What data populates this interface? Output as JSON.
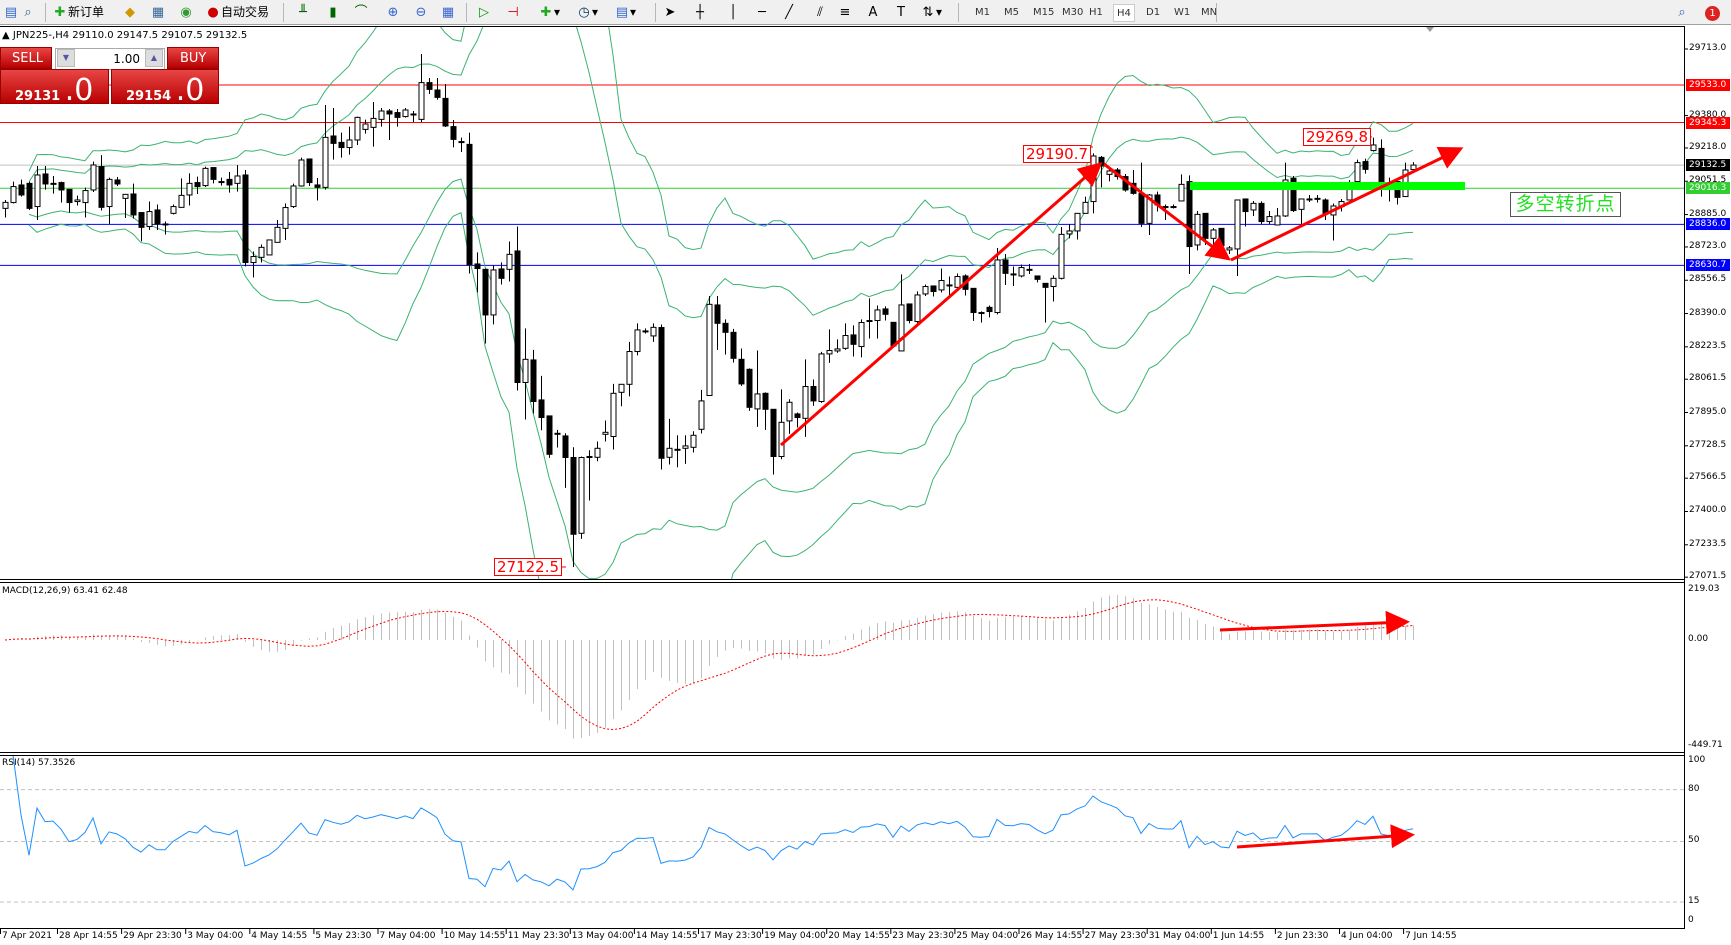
{
  "toolbar": {
    "new_order": "新订单",
    "auto_trading": "自动交易",
    "timeframes": [
      "M1",
      "M5",
      "M15",
      "M30",
      "H1",
      "H4",
      "D1",
      "W1",
      "MN"
    ],
    "active_timeframe": "H4",
    "notification_count": "1",
    "icons": [
      "profiles-icon",
      "market-watch-icon",
      "new-order-icon",
      "expert-icon",
      "data-window-icon",
      "signals-icon",
      "auto-trading-icon",
      "bar-chart-icon",
      "candlestick-icon",
      "line-chart-icon",
      "zoom-in-icon",
      "zoom-out-icon",
      "tile-windows-icon",
      "chart-shift-icon",
      "auto-scroll-icon",
      "indicators-icon",
      "periods-icon",
      "templates-icon",
      "cursor-icon",
      "crosshair-icon",
      "vertical-line-icon",
      "horizontal-line-icon",
      "trendline-icon",
      "channel-icon",
      "fibonacci-icon",
      "text-icon",
      "text-label-icon",
      "arrows-icon",
      "search-icon",
      "notification-icon"
    ]
  },
  "header": {
    "symbol_info": "▲ JPN225-,H4  29110.0 29147.5 29107.5 29132.5"
  },
  "one_click": {
    "sell_label": "SELL",
    "buy_label": "BUY",
    "lots": "1.00",
    "sell_price_main": "29131",
    "sell_price_big": ".0",
    "buy_price_main": "29154",
    "buy_price_big": ".0",
    "colors": {
      "panel": "#c80000"
    }
  },
  "annotations": {
    "high1": "29190.7",
    "high2": "29269.8",
    "low1": "27122.5",
    "pivot_text": "多空转折点"
  },
  "macd": {
    "label": "MACD(12,26,9) 63.41 62.48",
    "axis": [
      "219.03",
      "0.00",
      "-449.71"
    ]
  },
  "rsi": {
    "label": "RSI(14) 57.3526",
    "axis": [
      "100",
      "80",
      "50",
      "15",
      "0"
    ]
  },
  "chart_data": {
    "type": "candlestick",
    "symbol": "JPN225-",
    "timeframe": "H4",
    "ylim": [
      27071.5,
      29713.0
    ],
    "price_ticks": [
      "29713.0",
      "29380.0",
      "29218.0",
      "29051.5",
      "28885.0",
      "28723.0",
      "28556.5",
      "28390.0",
      "28223.5",
      "28061.5",
      "27895.0",
      "27728.5",
      "27566.5",
      "27400.0",
      "27233.5",
      "27071.5"
    ],
    "levels": [
      {
        "price": 29533.0,
        "label": "29533.0",
        "color": "#ff0000"
      },
      {
        "price": 29345.3,
        "label": "29345.3",
        "color": "#ff0000"
      },
      {
        "price": 29132.5,
        "label": "29132.5",
        "color": "#000000",
        "line": "#c0c0c0"
      },
      {
        "price": 29016.3,
        "label": "29016.3",
        "color": "#32cd32"
      },
      {
        "price": 28836.0,
        "label": "28836.0",
        "color": "#0000ff"
      },
      {
        "price": 28630.7,
        "label": "28630.7",
        "color": "#0000ff"
      }
    ],
    "time_labels": [
      "7 Apr 2021",
      "28 Apr 14:55",
      "29 Apr 23:30",
      "3 May 04:00",
      "4 May 14:55",
      "5 May 23:30",
      "7 May 04:00",
      "10 May 14:55",
      "11 May 23:30",
      "13 May 04:00",
      "14 May 14:55",
      "17 May 23:30",
      "19 May 04:00",
      "20 May 14:55",
      "23 May 23:30",
      "25 May 04:00",
      "26 May 14:55",
      "27 May 23:30",
      "31 May 04:00",
      "1 Jun 14:55",
      "2 Jun 23:30",
      "4 Jun 04:00",
      "7 Jun 14:55"
    ],
    "ohlc": [
      [
        28916,
        28958,
        28870,
        28946
      ],
      [
        28945,
        29050,
        28940,
        29025
      ],
      [
        29033,
        29060,
        28975,
        28983
      ],
      [
        29041,
        29050,
        28908,
        28916
      ],
      [
        28925,
        29128,
        28858,
        29083
      ],
      [
        29088,
        29128,
        29010,
        29038
      ],
      [
        29040,
        29078,
        28990,
        29041
      ],
      [
        29045,
        29050,
        28945,
        29008
      ],
      [
        29011,
        29011,
        28895,
        28945
      ],
      [
        28950,
        28980,
        28930,
        28958
      ],
      [
        28945,
        29020,
        28870,
        29005
      ],
      [
        29008,
        29150,
        28998,
        29133
      ],
      [
        29125,
        29182,
        28905,
        28921
      ],
      [
        28925,
        29070,
        28838,
        29061
      ],
      [
        29058,
        29073,
        29028,
        29038
      ],
      [
        28966,
        28986,
        28868,
        28986
      ],
      [
        28988,
        29040,
        28865,
        28883
      ],
      [
        28895,
        28895,
        28751,
        28821
      ],
      [
        28825,
        28950,
        28808,
        28900
      ],
      [
        28908,
        28935,
        28808,
        28838
      ],
      [
        28838,
        28850,
        28785,
        28838
      ],
      [
        28891,
        28935,
        28885,
        28925
      ],
      [
        28921,
        29066,
        28920,
        28981
      ],
      [
        28983,
        29091,
        28930,
        29041
      ],
      [
        29045,
        29075,
        28988,
        29025
      ],
      [
        29030,
        29125,
        29023,
        29116
      ],
      [
        29120,
        29120,
        29041,
        29061
      ],
      [
        29050,
        29070,
        29030,
        29050
      ],
      [
        29061,
        29098,
        28995,
        29033
      ],
      [
        29041,
        29133,
        29000,
        29078
      ],
      [
        29083,
        29108,
        28626,
        28645
      ],
      [
        28645,
        28700,
        28570,
        28675
      ],
      [
        28671,
        28735,
        28645,
        28721
      ],
      [
        28683,
        28758,
        28683,
        28758
      ],
      [
        28746,
        28858,
        28746,
        28821
      ],
      [
        28816,
        28940,
        28758,
        28920
      ],
      [
        28925,
        29040,
        28918,
        29028
      ],
      [
        29028,
        29170,
        29025,
        29158
      ],
      [
        29163,
        29163,
        29028,
        29045
      ],
      [
        29033,
        29068,
        28955,
        29021
      ],
      [
        29021,
        29433,
        29010,
        29271
      ],
      [
        29278,
        29418,
        29160,
        29241
      ],
      [
        29246,
        29295,
        29170,
        29220
      ],
      [
        29220,
        29325,
        29185,
        29258
      ],
      [
        29258,
        29375,
        29233,
        29371
      ],
      [
        29311,
        29360,
        29290,
        29338
      ],
      [
        29321,
        29448,
        29225,
        29366
      ],
      [
        29361,
        29418,
        29325,
        29403
      ],
      [
        29403,
        29413,
        29258,
        29388
      ],
      [
        29395,
        29413,
        29325,
        29371
      ],
      [
        29375,
        29418,
        29370,
        29408
      ],
      [
        29388,
        29403,
        29348,
        29388
      ],
      [
        29361,
        29688,
        29348,
        29545
      ],
      [
        29545,
        29568,
        29488,
        29511
      ],
      [
        29508,
        29568,
        29460,
        29471
      ],
      [
        29466,
        29538,
        29323,
        29328
      ],
      [
        29325,
        29358,
        29221,
        29261
      ],
      [
        29250,
        29270,
        29198,
        29250
      ],
      [
        29236,
        29295,
        28590,
        28633
      ],
      [
        28638,
        28696,
        28496,
        28615
      ],
      [
        28611,
        28615,
        28240,
        28383
      ],
      [
        28383,
        28630,
        28336,
        28608
      ],
      [
        28613,
        28646,
        28535,
        28566
      ],
      [
        28611,
        28750,
        28550,
        28686
      ],
      [
        28703,
        28825,
        28005,
        28045
      ],
      [
        28045,
        28316,
        27860,
        28161
      ],
      [
        28158,
        28208,
        27890,
        27950
      ],
      [
        27958,
        28078,
        27806,
        27870
      ],
      [
        27878,
        27878,
        27668,
        27686
      ],
      [
        27791,
        27808,
        27720,
        27791
      ],
      [
        27778,
        27791,
        27518,
        27670
      ],
      [
        27670,
        27721,
        27122.5,
        27286
      ],
      [
        27291,
        27675,
        27263,
        27670
      ],
      [
        27675,
        27706,
        27455,
        27675
      ],
      [
        27671,
        27750,
        27651,
        27716
      ],
      [
        27786,
        27855,
        27750,
        27796
      ],
      [
        27775,
        28038,
        27710,
        27991
      ],
      [
        27996,
        28038,
        27926,
        28036
      ],
      [
        28036,
        28248,
        27976,
        28200
      ],
      [
        28200,
        28341,
        28181,
        28308
      ],
      [
        28303,
        28316,
        28290,
        28303
      ],
      [
        28278,
        28341,
        28248,
        28321
      ],
      [
        28320,
        28335,
        27610,
        27666
      ],
      [
        27671,
        27863,
        27635,
        27716
      ],
      [
        27711,
        27781,
        27621,
        27711
      ],
      [
        27716,
        27781,
        27638,
        27728
      ],
      [
        27721,
        27801,
        27695,
        27781
      ],
      [
        27811,
        28008,
        27790,
        27953
      ],
      [
        27980,
        28478,
        27980,
        28436
      ],
      [
        28433,
        28478,
        28208,
        28341
      ],
      [
        28341,
        28361,
        28185,
        28296
      ],
      [
        28296,
        28313,
        28145,
        28166
      ],
      [
        28161,
        28215,
        28028,
        28038
      ],
      [
        28111,
        28116,
        27903,
        27921
      ],
      [
        27913,
        28205,
        27823,
        27988
      ],
      [
        27991,
        27996,
        27808,
        27911
      ],
      [
        27911,
        27911,
        27585,
        27675
      ],
      [
        27675,
        28011,
        27661,
        27846
      ],
      [
        27853,
        27961,
        27788,
        27946
      ],
      [
        27888,
        27895,
        27820,
        27870
      ],
      [
        27866,
        28161,
        27773,
        28025
      ],
      [
        28025,
        28060,
        27928,
        27953
      ],
      [
        27950,
        28198,
        27943,
        28188
      ],
      [
        28188,
        28311,
        28143,
        28205
      ],
      [
        28203,
        28261,
        28193,
        28213
      ],
      [
        28216,
        28341,
        28208,
        28280
      ],
      [
        28283,
        28331,
        28175,
        28236
      ],
      [
        28225,
        28361,
        28171,
        28345
      ],
      [
        28355,
        28466,
        28265,
        28355
      ],
      [
        28355,
        28430,
        28265,
        28408
      ],
      [
        28413,
        28426,
        28355,
        28386
      ],
      [
        28346,
        28346,
        28220,
        28228
      ],
      [
        28203,
        28586,
        28203,
        28433
      ],
      [
        28438,
        28438,
        28341,
        28355
      ],
      [
        28350,
        28501,
        28341,
        28483
      ],
      [
        28488,
        28535,
        28478,
        28525
      ],
      [
        28528,
        28528,
        28475,
        28500
      ],
      [
        28508,
        28615,
        28495,
        28555
      ],
      [
        28533,
        28575,
        28470,
        28533
      ],
      [
        28521,
        28590,
        28508,
        28575
      ],
      [
        28578,
        28586,
        28480,
        28511
      ],
      [
        28516,
        28516,
        28353,
        28395
      ],
      [
        28395,
        28401,
        28345,
        28391
      ],
      [
        28421,
        28430,
        28371,
        28400
      ],
      [
        28395,
        28718,
        28386,
        28658
      ],
      [
        28658,
        28688,
        28533,
        28591
      ],
      [
        28588,
        28625,
        28528,
        28588
      ],
      [
        28578,
        28635,
        28571,
        28620
      ],
      [
        28611,
        28638,
        28588,
        28611
      ],
      [
        28578,
        28578,
        28546,
        28561
      ],
      [
        28541,
        28541,
        28345,
        28521
      ],
      [
        28525,
        28581,
        28450,
        28566
      ],
      [
        28566,
        28823,
        28560,
        28786
      ],
      [
        28788,
        28838,
        28766,
        28803
      ],
      [
        28803,
        28891,
        28760,
        28891
      ],
      [
        28891,
        28975,
        28891,
        28946
      ],
      [
        28950,
        29190.7,
        28891,
        29178
      ],
      [
        29171,
        29178,
        29021,
        29128
      ],
      [
        29086,
        29118,
        29051,
        29103
      ],
      [
        29108,
        29118,
        29060,
        29075
      ],
      [
        29075,
        29088,
        29000,
        29008
      ],
      [
        29041,
        29108,
        28985,
        28991
      ],
      [
        28991,
        29145,
        28823,
        28841
      ],
      [
        28841,
        28988,
        28783,
        28983
      ],
      [
        28983,
        29000,
        28900,
        28933
      ],
      [
        28925,
        28935,
        28858,
        28925
      ],
      [
        28925,
        28935,
        28915,
        28925
      ],
      [
        28953,
        29086,
        28953,
        29036
      ],
      [
        29050,
        29081,
        28588,
        28725
      ],
      [
        28733,
        28903,
        28706,
        28886
      ],
      [
        28891,
        28891,
        28733,
        28766
      ],
      [
        28766,
        28818,
        28720,
        28808
      ],
      [
        28816,
        28816,
        28721,
        28730
      ],
      [
        28708,
        28728,
        28688,
        28718
      ],
      [
        28713,
        28958,
        28578,
        28958
      ],
      [
        28963,
        28963,
        28825,
        28900
      ],
      [
        28908,
        28953,
        28878,
        28941
      ],
      [
        28941,
        28951,
        28838,
        28850
      ],
      [
        28850,
        28903,
        28838,
        28875
      ],
      [
        28833,
        28918,
        28833,
        28878
      ],
      [
        28878,
        29145,
        28873,
        29058
      ],
      [
        29066,
        29078,
        28898,
        28905
      ],
      [
        28911,
        28963,
        28838,
        28963
      ],
      [
        28963,
        28983,
        28948,
        28963
      ],
      [
        28966,
        28983,
        28945,
        28966
      ],
      [
        28958,
        28966,
        28858,
        28888
      ],
      [
        28883,
        28940,
        28755,
        28928
      ],
      [
        28925,
        28963,
        28900,
        28950
      ],
      [
        28958,
        29058,
        28958,
        29025
      ],
      [
        29050,
        29160,
        29050,
        29145
      ],
      [
        29150,
        29165,
        29090,
        29111
      ],
      [
        29205,
        29269.8,
        29200,
        29233
      ],
      [
        29216,
        29261,
        28975,
        29050
      ],
      [
        29030,
        29070,
        28950,
        29030
      ],
      [
        29050,
        29050,
        28935,
        28971
      ],
      [
        28975,
        29145,
        28975,
        29108
      ],
      [
        29110,
        29147.5,
        29107.5,
        29132.5
      ]
    ],
    "colors": {
      "bull_body": "#ffffff",
      "bear_body": "#000000",
      "bands": "#3cb371",
      "macd_hist": "#c0c0c0",
      "macd_signal": "#ff0000",
      "rsi": "#1e90ff",
      "arrows": "#ff0000",
      "pivot_zone": "#00ff00"
    },
    "macd_range": [
      -449.71,
      219.03
    ],
    "rsi_levels": [
      80,
      50,
      15
    ],
    "grid": false
  }
}
